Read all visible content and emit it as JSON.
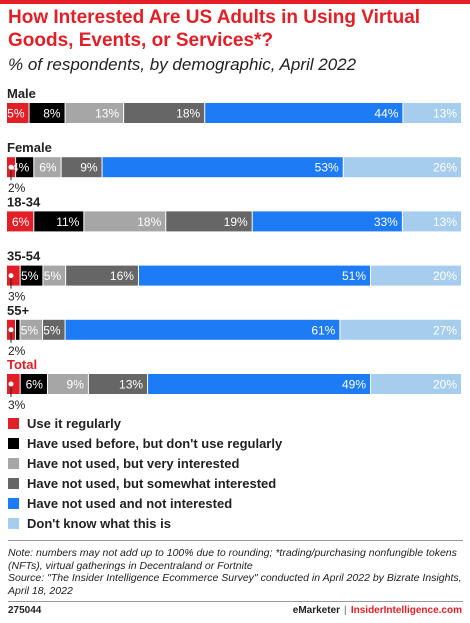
{
  "header": {
    "title": "How Interested Are US Adults in Using Virtual Goods, Events, or Services*?",
    "subtitle": "% of respondents, by demographic, April 2022"
  },
  "chart_data": {
    "type": "bar",
    "orientation": "horizontal",
    "stacked": true,
    "categories": [
      "Male",
      "Female",
      "18-34",
      "35-54",
      "55+",
      "Total"
    ],
    "series": [
      {
        "name": "Use it regularly",
        "values": [
          5,
          2,
          6,
          3,
          2,
          3
        ],
        "color": "#e21f26"
      },
      {
        "name": "Have used before, but don't use regularly",
        "values": [
          8,
          4,
          11,
          5,
          1,
          6
        ],
        "color": "#000000"
      },
      {
        "name": "Have not used, but very interested",
        "values": [
          13,
          6,
          18,
          5,
          5,
          9
        ],
        "color": "#a6a6a6"
      },
      {
        "name": "Have not used, but somewhat interested",
        "values": [
          18,
          9,
          19,
          16,
          5,
          13
        ],
        "color": "#666666"
      },
      {
        "name": "Have not used and not interested",
        "values": [
          44,
          53,
          33,
          51,
          61,
          49
        ],
        "color": "#1d7bf5"
      },
      {
        "name": "Don't know what this is",
        "values": [
          13,
          26,
          13,
          20,
          27,
          20
        ],
        "color": "#a6cdee"
      }
    ],
    "labels": [
      [
        "5%",
        "8%",
        "13%",
        "18%",
        "44%",
        "13%"
      ],
      [
        "2%",
        "4%",
        "6%",
        "9%",
        "53%",
        "26%"
      ],
      [
        "6%",
        "11%",
        "18%",
        "19%",
        "33%",
        "13%"
      ],
      [
        "3%",
        "5%",
        "5%",
        "16%",
        "51%",
        "20%"
      ],
      [
        "2%",
        "",
        "5%",
        "5%",
        "61%",
        "27%"
      ],
      [
        "3%",
        "6%",
        "9%",
        "13%",
        "49%",
        "20%"
      ]
    ],
    "callouts": [
      false,
      true,
      false,
      true,
      true,
      true
    ],
    "highlight_category": "Total",
    "highlight_color": "#e21f26",
    "xlim": [
      0,
      100
    ]
  },
  "notes": {
    "note": "Note: numbers may not add up to 100% due to rounding; *trading/purchasing nonfungible tokens (NFTs), virtual gatherings in Decentraland or Fortnite",
    "source": "Source: \"The Insider Intelligence Ecommerce Survey\" conducted in April 2022 by Bizrate Insights, April 18, 2022"
  },
  "footer": {
    "id": "275044",
    "brand_a": "eMarketer",
    "separator": "|",
    "brand_b": "InsiderIntelligence.com"
  }
}
